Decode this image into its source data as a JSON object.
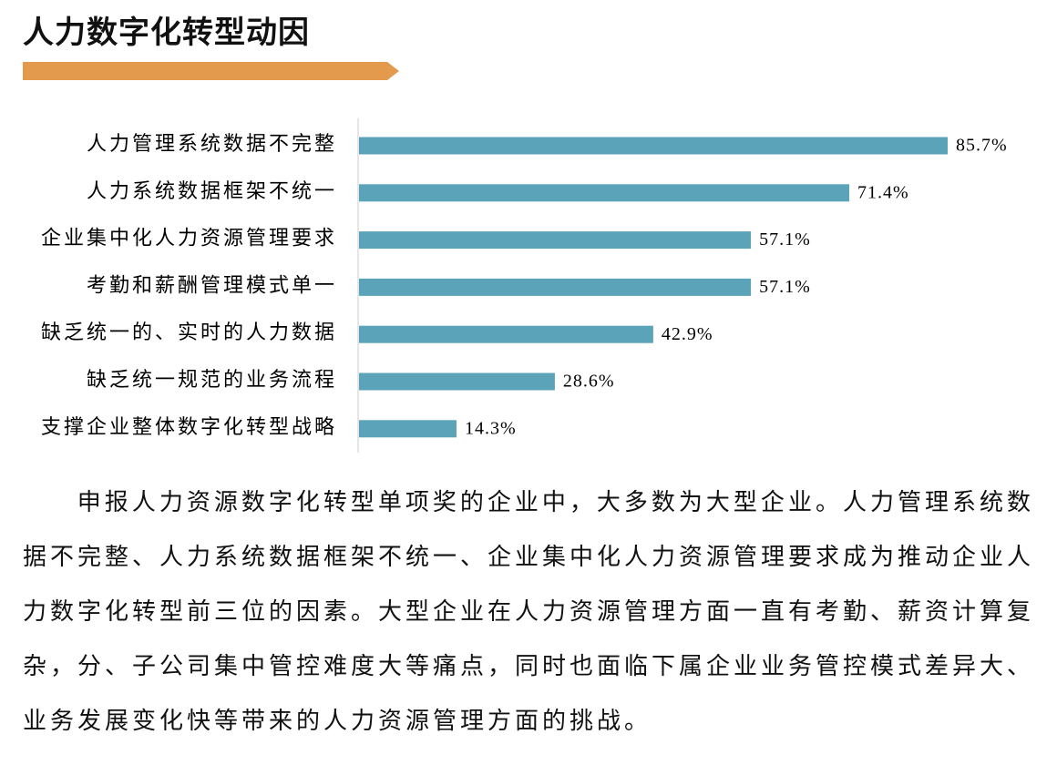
{
  "header": {
    "title": "人力数字化转型动因"
  },
  "chart_data": {
    "type": "bar",
    "orientation": "horizontal",
    "categories": [
      "人力管理系统数据不完整",
      "人力系统数据框架不统一",
      "企业集中化人力资源管理要求",
      "考勤和薪酬管理模式单一",
      "缺乏统一的、实时的人力数据",
      "缺乏统一规范的业务流程",
      "支撑企业整体数字化转型战略"
    ],
    "values": [
      85.7,
      71.4,
      57.1,
      57.1,
      42.9,
      28.6,
      14.3
    ],
    "value_labels": [
      "85.7%",
      "71.4%",
      "57.1%",
      "57.1%",
      "42.9%",
      "28.6%",
      "14.3%"
    ],
    "color": "#5ba3b8"
  },
  "body": {
    "paragraph": "申报人力资源数字化转型单项奖的企业中，大多数为大型企业。人力管理系统数据不完整、人力系统数据框架不统一、企业集中化人力资源管理要求成为推动企业人力数字化转型前三位的因素。大型企业在人力资源管理方面一直有考勤、薪资计算复杂，分、子公司集中管控难度大等痛点，同时也面临下属企业业务管控模式差异大、业务发展变化快等带来的人力资源管理方面的挑战。"
  }
}
